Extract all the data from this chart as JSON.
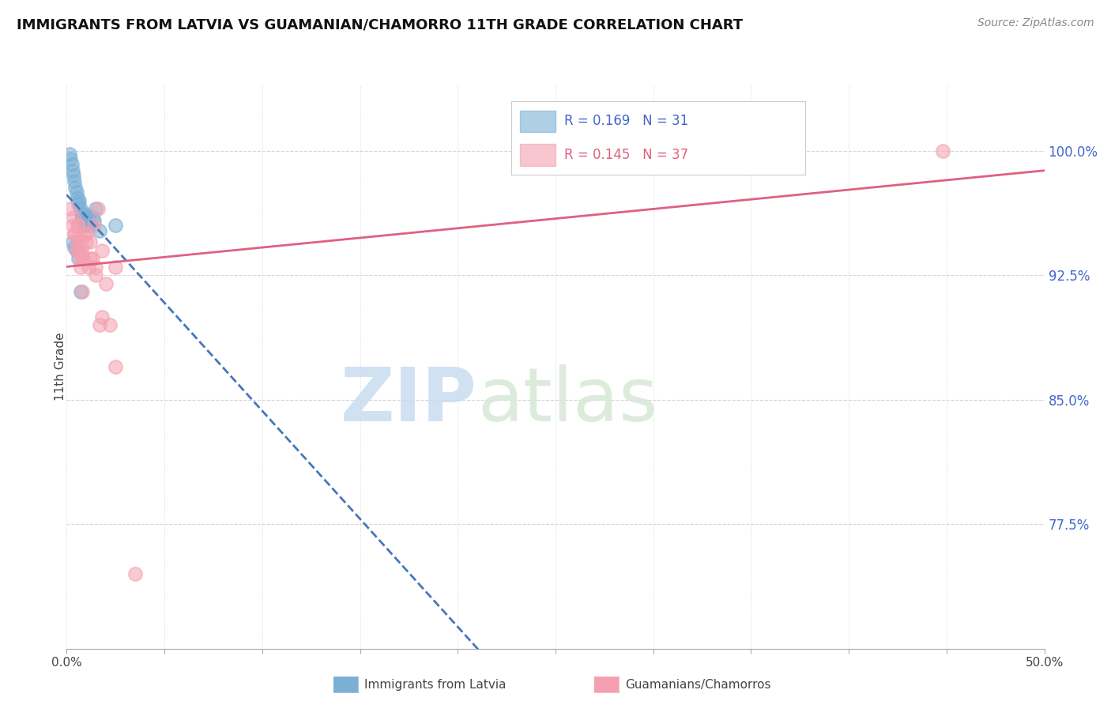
{
  "title": "IMMIGRANTS FROM LATVIA VS GUAMANIAN/CHAMORRO 11TH GRADE CORRELATION CHART",
  "source": "Source: ZipAtlas.com",
  "ylabel": "11th Grade",
  "right_yticks": [
    77.5,
    85.0,
    92.5,
    100.0
  ],
  "right_ytick_labels": [
    "77.5%",
    "85.0%",
    "92.5%",
    "100.0%"
  ],
  "xlim": [
    0.0,
    50.0
  ],
  "ylim": [
    70.0,
    104.0
  ],
  "legend_blue_r": "0.169",
  "legend_blue_n": "31",
  "legend_pink_r": "0.145",
  "legend_pink_n": "37",
  "blue_label": "Immigrants from Latvia",
  "pink_label": "Guamanians/Chamorros",
  "blue_color": "#7BAFD4",
  "pink_color": "#F4A0B0",
  "blue_line_color": "#4477BB",
  "pink_line_color": "#E06080",
  "blue_scatter_x": [
    0.15,
    0.2,
    0.25,
    0.3,
    0.35,
    0.4,
    0.45,
    0.5,
    0.55,
    0.6,
    0.65,
    0.7,
    0.75,
    0.8,
    0.85,
    0.9,
    0.95,
    1.0,
    1.05,
    1.1,
    1.2,
    1.3,
    1.4,
    1.5,
    1.7,
    0.3,
    0.5,
    0.6,
    0.7,
    2.5,
    0.4
  ],
  "blue_scatter_y": [
    99.8,
    99.5,
    99.2,
    98.8,
    98.5,
    98.2,
    97.8,
    97.5,
    97.2,
    96.8,
    97.0,
    96.5,
    96.2,
    96.0,
    95.8,
    95.5,
    96.2,
    95.8,
    95.5,
    96.0,
    95.5,
    96.0,
    95.8,
    96.5,
    95.2,
    94.5,
    94.0,
    93.5,
    91.5,
    95.5,
    94.2
  ],
  "pink_scatter_x": [
    0.2,
    0.3,
    0.35,
    0.4,
    0.5,
    0.55,
    0.6,
    0.65,
    0.7,
    0.75,
    0.8,
    0.85,
    0.9,
    1.0,
    1.1,
    1.2,
    1.3,
    1.4,
    1.5,
    1.6,
    1.7,
    1.8,
    2.0,
    2.2,
    2.5,
    0.4,
    0.5,
    0.6,
    0.7,
    0.8,
    1.0,
    1.2,
    3.5,
    1.5,
    1.8,
    2.5,
    44.8
  ],
  "pink_scatter_y": [
    96.5,
    95.5,
    96.0,
    95.0,
    94.5,
    95.5,
    94.0,
    94.8,
    93.5,
    94.2,
    93.8,
    93.5,
    95.0,
    94.5,
    93.0,
    93.5,
    93.5,
    95.5,
    92.5,
    96.5,
    89.5,
    90.0,
    92.0,
    89.5,
    87.0,
    95.0,
    94.0,
    95.5,
    93.0,
    91.5,
    95.0,
    94.5,
    74.5,
    93.0,
    94.0,
    93.0,
    100.0
  ],
  "watermark_zip": "ZIP",
  "watermark_atlas": "atlas",
  "background_color": "#FFFFFF",
  "grid_color": "#CCCCCC",
  "title_fontsize": 13,
  "source_fontsize": 10
}
